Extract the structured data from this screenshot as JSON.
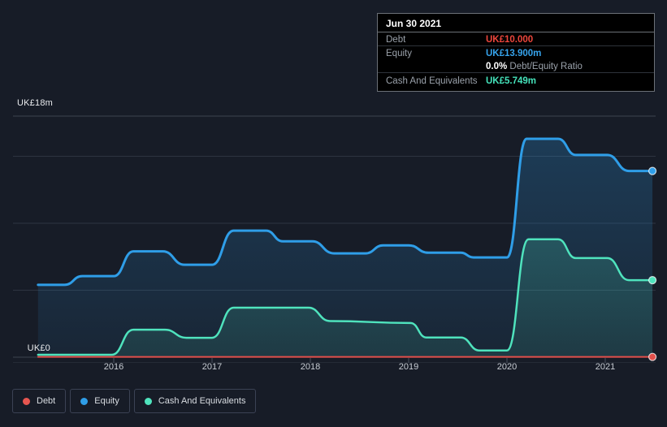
{
  "page": {
    "background": "#171c27"
  },
  "tooltip": {
    "date": "Jun 30 2021",
    "debt_label": "Debt",
    "debt_value": "UK£10.000",
    "debt_color": "#ed463c",
    "equity_label": "Equity",
    "equity_value": "UK£13.900m",
    "equity_color": "#36a3ec",
    "ratio_value": "0.0%",
    "ratio_label": " Debt/Equity Ratio",
    "cash_label": "Cash And Equivalents",
    "cash_value": "UK£5.749m",
    "cash_color": "#45e3bb"
  },
  "axis": {
    "y_top_label": "UK£18m",
    "y_bottom_label": "UK£0"
  },
  "legend": {
    "items": [
      {
        "label": "Debt",
        "color": "#e65650"
      },
      {
        "label": "Equity",
        "color": "#2f9ee8"
      },
      {
        "label": "Cash And Equivalents",
        "color": "#4fe3bd"
      }
    ]
  },
  "chart_data": {
    "type": "area",
    "unit": "UK£ millions",
    "ylim": [
      0,
      18
    ],
    "y_gridlines_m": [
      0,
      5,
      10,
      15,
      18
    ],
    "x_ticks": [
      "2016",
      "2017",
      "2018",
      "2019",
      "2020",
      "2021"
    ],
    "x_range": [
      2015.23,
      2021.48
    ],
    "grid": true,
    "legend_position": "bottom-left",
    "series": [
      {
        "name": "Equity",
        "color": "#2f9ee8",
        "fill": true,
        "fill_opacity_top": 0.26,
        "fill_opacity_bottom": 0.07,
        "stroke_width": 3,
        "points": [
          [
            2015.23,
            5.4
          ],
          [
            2015.5,
            5.4
          ],
          [
            2015.68,
            6.05
          ],
          [
            2016.0,
            6.05
          ],
          [
            2016.2,
            7.9
          ],
          [
            2016.5,
            7.9
          ],
          [
            2016.72,
            6.9
          ],
          [
            2017.0,
            6.9
          ],
          [
            2017.22,
            9.45
          ],
          [
            2017.55,
            9.45
          ],
          [
            2017.72,
            8.65
          ],
          [
            2018.02,
            8.65
          ],
          [
            2018.24,
            7.75
          ],
          [
            2018.56,
            7.75
          ],
          [
            2018.74,
            8.35
          ],
          [
            2019.0,
            8.35
          ],
          [
            2019.2,
            7.8
          ],
          [
            2019.53,
            7.8
          ],
          [
            2019.66,
            7.45
          ],
          [
            2020.0,
            7.45
          ],
          [
            2020.2,
            16.3
          ],
          [
            2020.52,
            16.3
          ],
          [
            2020.7,
            15.1
          ],
          [
            2021.02,
            15.1
          ],
          [
            2021.24,
            13.9
          ],
          [
            2021.48,
            13.9
          ]
        ]
      },
      {
        "name": "Cash And Equivalents",
        "color": "#4fe3bd",
        "fill": true,
        "fill_opacity_top": 0.3,
        "fill_opacity_bottom": 0.1,
        "stroke_width": 2.5,
        "points": [
          [
            2015.23,
            0.18
          ],
          [
            2015.98,
            0.18
          ],
          [
            2016.2,
            2.05
          ],
          [
            2016.52,
            2.05
          ],
          [
            2016.74,
            1.45
          ],
          [
            2017.0,
            1.45
          ],
          [
            2017.22,
            3.7
          ],
          [
            2017.98,
            3.7
          ],
          [
            2018.2,
            2.7
          ],
          [
            2019.02,
            2.55
          ],
          [
            2019.18,
            1.47
          ],
          [
            2019.53,
            1.47
          ],
          [
            2019.72,
            0.5
          ],
          [
            2020.0,
            0.5
          ],
          [
            2020.22,
            8.8
          ],
          [
            2020.52,
            8.8
          ],
          [
            2020.7,
            7.4
          ],
          [
            2021.02,
            7.4
          ],
          [
            2021.24,
            5.75
          ],
          [
            2021.48,
            5.75
          ]
        ]
      },
      {
        "name": "Debt",
        "color": "#e2504b",
        "fill": false,
        "stroke_width": 2,
        "points": [
          [
            2015.23,
            0.02
          ],
          [
            2021.48,
            0.02
          ]
        ]
      }
    ]
  }
}
